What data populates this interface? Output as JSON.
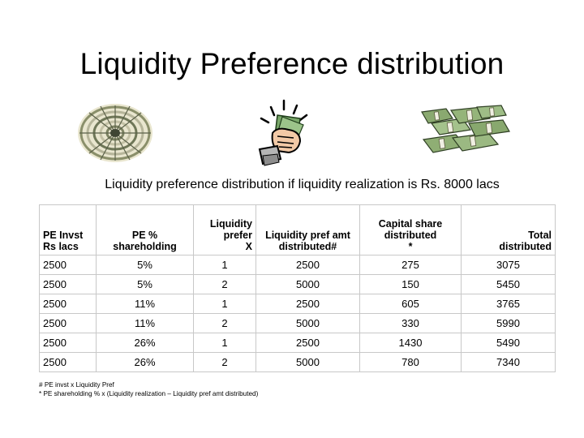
{
  "slide": {
    "title": "Liquidity Preference distribution",
    "subtitle": "Liquidity preference distribution if liquidity realization is Rs. 8000 lacs"
  },
  "images": [
    {
      "icon": "coin-money-pile-icon"
    },
    {
      "icon": "fist-with-cash-icon"
    },
    {
      "icon": "cash-bundles-stack-icon"
    }
  ],
  "table": {
    "headers": [
      "PE Invst\nRs lacs",
      "PE %\nshareholding",
      "Liquidity\nprefer\nX",
      "Liquidity pref amt\ndistributed#",
      "Capital share\ndistributed\n*",
      "Total\ndistributed"
    ],
    "rows": [
      [
        "2500",
        "5%",
        "1",
        "2500",
        "275",
        "3075"
      ],
      [
        "2500",
        "5%",
        "2",
        "5000",
        "150",
        "5450"
      ],
      [
        "2500",
        "11%",
        "1",
        "2500",
        "605",
        "3765"
      ],
      [
        "2500",
        "11%",
        "2",
        "5000",
        "330",
        "5990"
      ],
      [
        "2500",
        "26%",
        "1",
        "2500",
        "1430",
        "5490"
      ],
      [
        "2500",
        "26%",
        "2",
        "5000",
        "780",
        "7340"
      ]
    ]
  },
  "footnotes": [
    "# PE invst x Liquidity Pref",
    "* PE shareholding % x (Liquidity realization – Liquidity pref amt distributed)"
  ]
}
